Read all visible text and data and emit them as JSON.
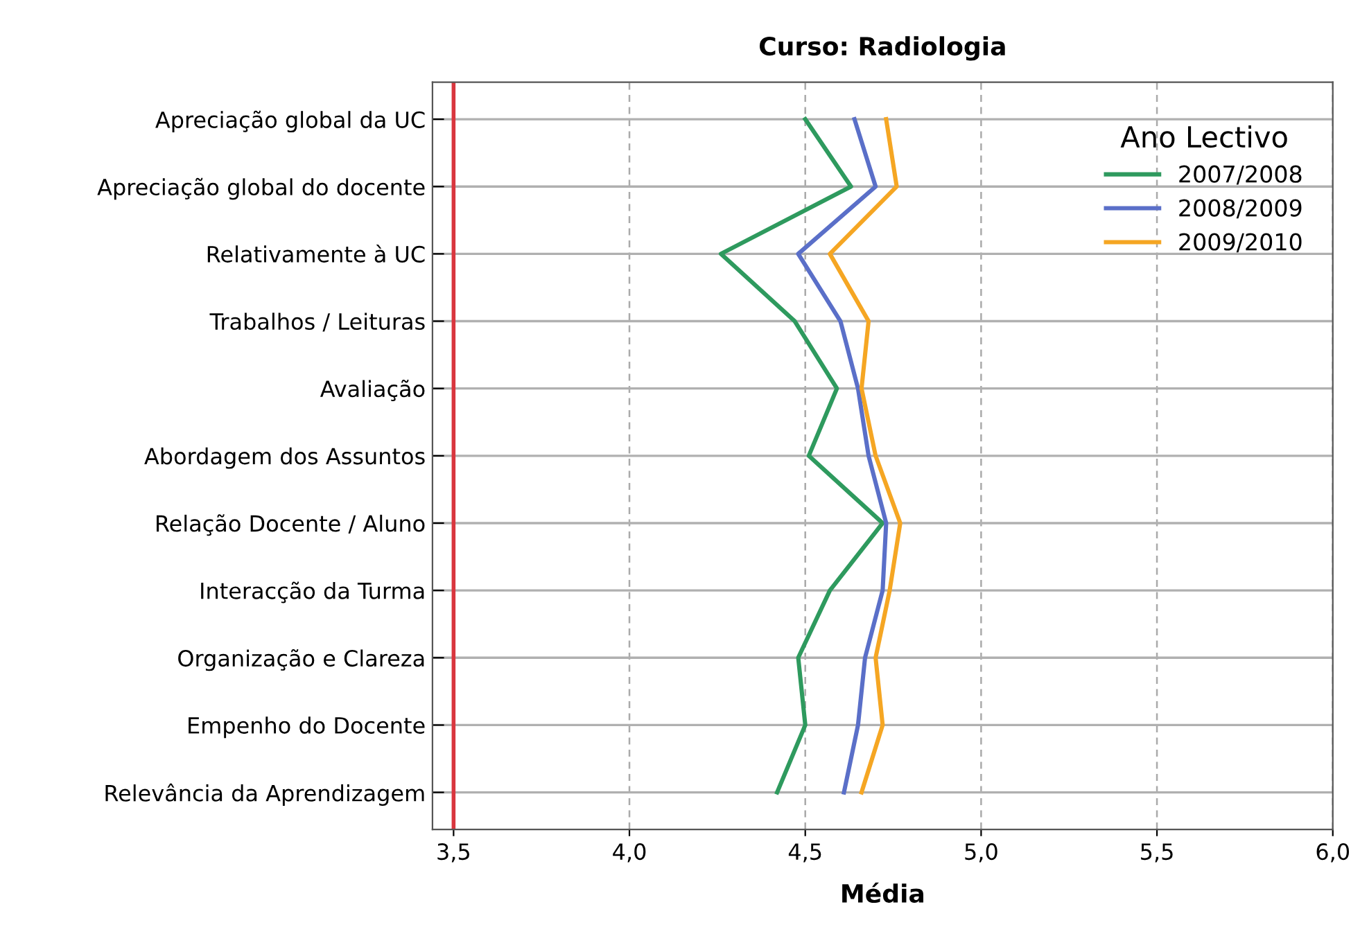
{
  "chart_data": {
    "type": "line",
    "orientation": "horizontal",
    "title": "Curso: Radiologia",
    "xlabel": "Média",
    "legend_title": "Ano Lectivo",
    "legend": "top right",
    "grid": true,
    "categories": [
      "Apreciação global da UC",
      "Apreciação global do docente",
      "Relativamente à UC",
      "Trabalhos / Leituras",
      "Avaliação",
      "Abordagem dos Assuntos",
      "Relação Docente / Aluno",
      "Interacção da Turma",
      "Organização e Clareza",
      "Empenho do Docente",
      "Relevância da Aprendizagem"
    ],
    "xlim": [
      3.44,
      6.0
    ],
    "xticks": [
      {
        "value": 3.5,
        "label": "3,5"
      },
      {
        "value": 4.0,
        "label": "4,0"
      },
      {
        "value": 4.5,
        "label": "4,5"
      },
      {
        "value": 5.0,
        "label": "5,0"
      },
      {
        "value": 5.5,
        "label": "5,5"
      },
      {
        "value": 6.0,
        "label": "6,0"
      }
    ],
    "ref_lines": [
      {
        "axis": "x",
        "value": 3.5,
        "color": "#d9363e"
      }
    ],
    "series": [
      {
        "name": "2007/2008",
        "color": "#2e9a5e",
        "values": [
          4.5,
          4.63,
          4.26,
          4.47,
          4.59,
          4.51,
          4.72,
          4.57,
          4.48,
          4.5,
          4.42
        ]
      },
      {
        "name": "2008/2009",
        "color": "#5a6fc8",
        "values": [
          4.64,
          4.7,
          4.48,
          4.6,
          4.65,
          4.68,
          4.73,
          4.72,
          4.67,
          4.65,
          4.61
        ]
      },
      {
        "name": "2009/2010",
        "color": "#f5a623",
        "values": [
          4.73,
          4.76,
          4.57,
          4.68,
          4.66,
          4.7,
          4.77,
          4.74,
          4.7,
          4.72,
          4.66
        ]
      }
    ]
  }
}
